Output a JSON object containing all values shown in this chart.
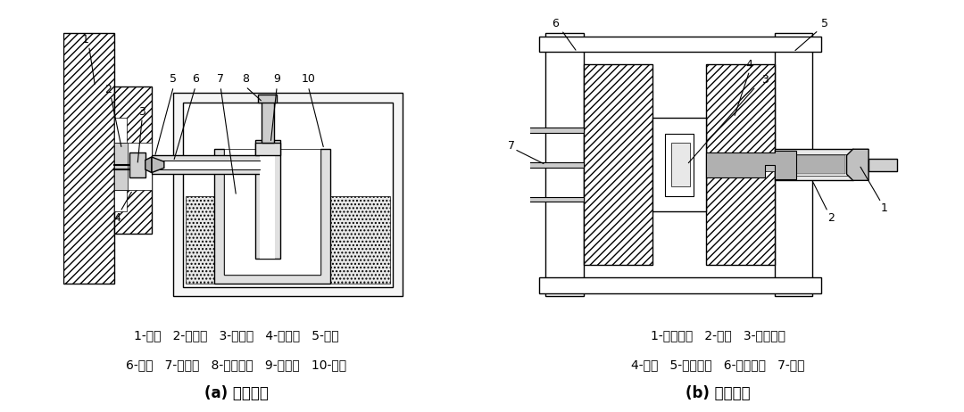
{
  "title_a": "(a) 热室压铸",
  "title_b": "(b) 冷室压铸",
  "legend_a_line1": "1-铸件   2-内浇道   3-分配器   4-直浇道   5-喷嘴",
  "legend_a_line2": "6-浇道   7-金属液   8-压射冲头   9-浇料壶   10-炉体",
  "legend_b_line1": "1-压射冲头   2-料筒   3-模具型腔",
  "legend_b_line2": "4-模具   5-模具定模   6-模具动模   7-顶杆",
  "bg_color": "#ffffff",
  "line_color": "#000000",
  "text_color": "#000000",
  "font_size_legend": 10.5,
  "font_size_title": 12,
  "font_size_num": 8
}
